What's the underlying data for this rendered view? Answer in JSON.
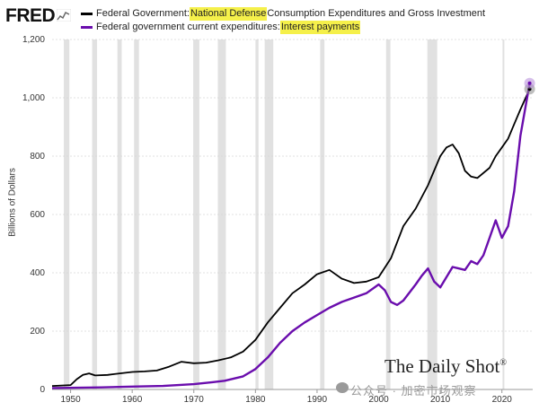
{
  "brand": {
    "logo_text": "FRED"
  },
  "legend": {
    "series1": {
      "prefix": "Federal Government: ",
      "highlight": "National Defense",
      "suffix": " Consumption Expenditures and Gross Investment"
    },
    "series2": {
      "prefix": "Federal government current expenditures: ",
      "highlight": "Interest payments",
      "suffix": ""
    }
  },
  "watermark": {
    "title": "The Daily Shot",
    "mark": "®",
    "subtitle": "公众号 · 加密市场观察"
  },
  "chart_data": {
    "type": "line",
    "ylabel": "Billions of Dollars",
    "xlabel": "",
    "ylim": [
      0,
      1200
    ],
    "xlim": [
      1947,
      2025
    ],
    "yticks": [
      0,
      200,
      400,
      600,
      800,
      1000,
      1200
    ],
    "ytick_labels": [
      "0",
      "200",
      "400",
      "600",
      "800",
      "1,000",
      "1,200"
    ],
    "xticks": [
      1950,
      1960,
      1970,
      1980,
      1990,
      2000,
      2010,
      2020
    ],
    "xtick_labels": [
      "1950",
      "1960",
      "1970",
      "1980",
      "1990",
      "2000",
      "2010",
      "2020"
    ],
    "grid": "horizontal",
    "recessions": [
      [
        1948.9,
        1949.8
      ],
      [
        1953.5,
        1954.3
      ],
      [
        1957.6,
        1958.3
      ],
      [
        1960.3,
        1961.1
      ],
      [
        1969.9,
        1970.9
      ],
      [
        1973.9,
        1975.2
      ],
      [
        1980.0,
        1980.5
      ],
      [
        1981.5,
        1982.9
      ],
      [
        1990.5,
        1991.2
      ],
      [
        2001.2,
        2001.9
      ],
      [
        2007.9,
        2009.5
      ],
      [
        2020.1,
        2020.4
      ]
    ],
    "series": [
      {
        "name": "Federal Government: National Defense Consumption Expenditures and Gross Investment",
        "color": "#000000",
        "x": [
          1947,
          1950,
          1951,
          1952,
          1953,
          1954,
          1956,
          1958,
          1960,
          1962,
          1964,
          1966,
          1968,
          1970,
          1972,
          1974,
          1976,
          1978,
          1980,
          1982,
          1984,
          1986,
          1988,
          1990,
          1992,
          1994,
          1996,
          1998,
          2000,
          2002,
          2004,
          2006,
          2008,
          2010,
          2011,
          2012,
          2013,
          2014,
          2015,
          2016,
          2018,
          2019,
          2020,
          2021,
          2022,
          2023,
          2024.5
        ],
        "values": [
          12,
          15,
          35,
          50,
          55,
          48,
          50,
          55,
          60,
          62,
          65,
          78,
          95,
          90,
          92,
          100,
          110,
          130,
          170,
          230,
          280,
          330,
          360,
          395,
          410,
          380,
          365,
          370,
          385,
          450,
          560,
          620,
          700,
          800,
          830,
          840,
          810,
          750,
          730,
          725,
          760,
          800,
          830,
          860,
          910,
          960,
          1030
        ]
      },
      {
        "name": "Federal government current expenditures: Interest payments",
        "color": "#6a0dad",
        "x": [
          1947,
          1955,
          1960,
          1965,
          1970,
          1973,
          1975,
          1978,
          1980,
          1982,
          1984,
          1986,
          1988,
          1990,
          1992,
          1994,
          1996,
          1998,
          2000,
          2001,
          2002,
          2003,
          2004,
          2006,
          2007,
          2008,
          2009,
          2010,
          2012,
          2014,
          2015,
          2016,
          2017,
          2018,
          2019,
          2020,
          2021,
          2022,
          2023,
          2024.5
        ],
        "values": [
          5,
          7,
          10,
          12,
          18,
          25,
          30,
          45,
          70,
          110,
          160,
          200,
          230,
          255,
          280,
          300,
          315,
          330,
          360,
          340,
          300,
          290,
          305,
          360,
          390,
          415,
          370,
          350,
          420,
          410,
          440,
          430,
          460,
          520,
          580,
          520,
          560,
          680,
          870,
          1050
        ]
      }
    ]
  }
}
